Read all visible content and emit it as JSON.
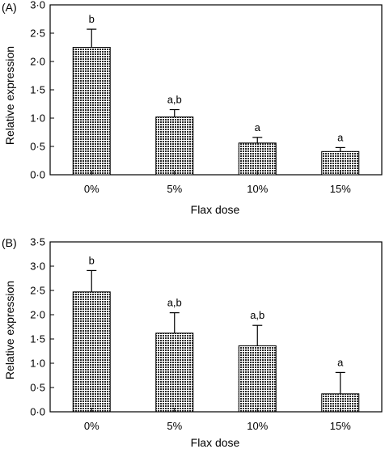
{
  "chart_data": [
    {
      "type": "bar",
      "panel_label": "(A)",
      "categories": [
        "0%",
        "5%",
        "10%",
        "15%"
      ],
      "values": [
        2.25,
        1.02,
        0.56,
        0.41
      ],
      "errors": [
        0.32,
        0.13,
        0.1,
        0.07
      ],
      "annotations": [
        "b",
        "a,b",
        "a",
        "a"
      ],
      "xlabel": "Flax dose",
      "ylabel": "Relative expression",
      "ylim": [
        0,
        3.0
      ],
      "yticks": [
        "0·0",
        "0·5",
        "1·0",
        "1·5",
        "2·0",
        "2·5",
        "3·0"
      ],
      "grid": false
    },
    {
      "type": "bar",
      "panel_label": "(B)",
      "categories": [
        "0%",
        "5%",
        "10%",
        "15%"
      ],
      "values": [
        2.47,
        1.62,
        1.36,
        0.37
      ],
      "errors": [
        0.44,
        0.42,
        0.42,
        0.44
      ],
      "annotations": [
        "b",
        "a,b",
        "a,b",
        "a"
      ],
      "xlabel": "Flax dose",
      "ylabel": "Relative expression",
      "ylim": [
        0,
        3.5
      ],
      "yticks": [
        "0·0",
        "0·5",
        "1·0",
        "1·5",
        "2·0",
        "2·5",
        "3·0",
        "3·5"
      ],
      "grid": false
    }
  ]
}
